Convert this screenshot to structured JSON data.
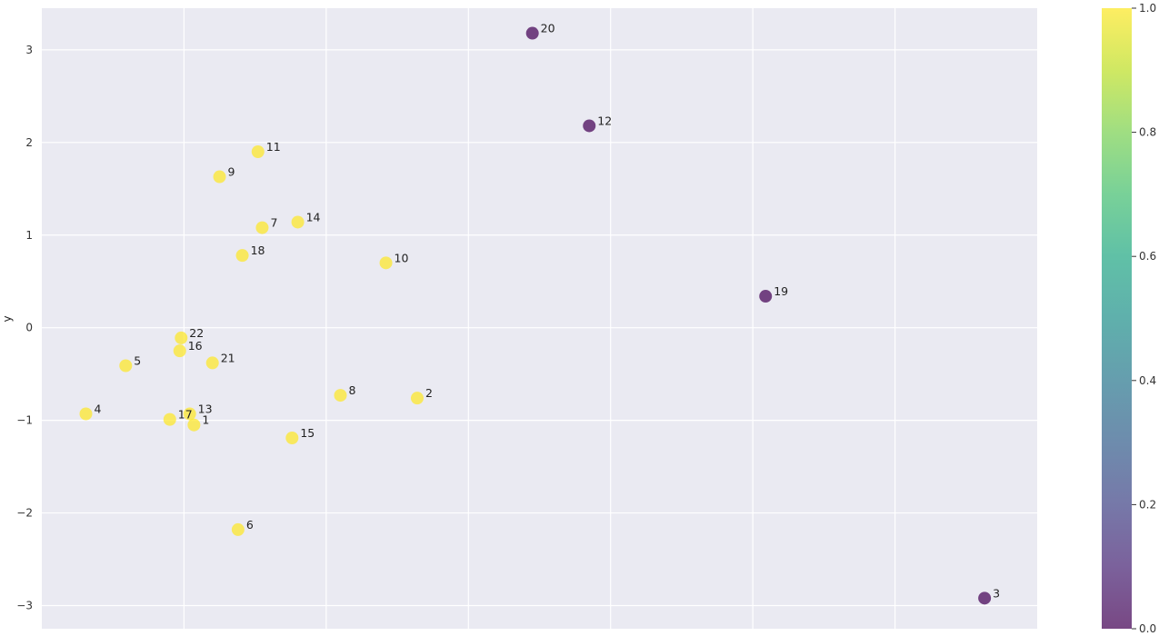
{
  "chart_data": {
    "type": "scatter",
    "ylabel": "y",
    "xlabel": "",
    "title": "",
    "ylim": [
      -3.25,
      3.45
    ],
    "yticks": [
      -3,
      -2,
      -1,
      0,
      1,
      2,
      3
    ],
    "xlim": [
      -1.0,
      6.0
    ],
    "xticks_unlabeled": [
      0,
      1,
      2,
      3,
      4,
      5
    ],
    "grid": true,
    "colormap": "viridis",
    "colorbar": {
      "range": [
        0.0,
        1.0
      ],
      "ticks": [
        "0.0",
        "0.2",
        "0.4",
        "0.6",
        "0.8",
        "1.0"
      ]
    },
    "points": [
      {
        "label": "1",
        "x": 0.07,
        "y": -1.05,
        "c": 1
      },
      {
        "label": "2",
        "x": 1.64,
        "y": -0.76,
        "c": 1
      },
      {
        "label": "3",
        "x": 5.63,
        "y": -2.92,
        "c": 0
      },
      {
        "label": "4",
        "x": -0.69,
        "y": -0.93,
        "c": 1
      },
      {
        "label": "5",
        "x": -0.41,
        "y": -0.41,
        "c": 1
      },
      {
        "label": "6",
        "x": 0.38,
        "y": -2.18,
        "c": 1
      },
      {
        "label": "7",
        "x": 0.55,
        "y": 1.08,
        "c": 1
      },
      {
        "label": "8",
        "x": 1.1,
        "y": -0.73,
        "c": 1
      },
      {
        "label": "9",
        "x": 0.25,
        "y": 1.63,
        "c": 1
      },
      {
        "label": "10",
        "x": 1.42,
        "y": 0.7,
        "c": 1
      },
      {
        "label": "11",
        "x": 0.52,
        "y": 1.9,
        "c": 1
      },
      {
        "label": "12",
        "x": 2.85,
        "y": 2.18,
        "c": 0
      },
      {
        "label": "13",
        "x": 0.04,
        "y": -0.93,
        "c": 1
      },
      {
        "label": "14",
        "x": 0.8,
        "y": 1.14,
        "c": 1
      },
      {
        "label": "15",
        "x": 0.76,
        "y": -1.19,
        "c": 1
      },
      {
        "label": "16",
        "x": -0.03,
        "y": -0.25,
        "c": 1
      },
      {
        "label": "17",
        "x": -0.1,
        "y": -0.99,
        "c": 1
      },
      {
        "label": "18",
        "x": 0.41,
        "y": 0.78,
        "c": 1
      },
      {
        "label": "19",
        "x": 4.09,
        "y": 0.34,
        "c": 0
      },
      {
        "label": "20",
        "x": 2.45,
        "y": 3.18,
        "c": 0
      },
      {
        "label": "21",
        "x": 0.2,
        "y": -0.38,
        "c": 1
      },
      {
        "label": "22",
        "x": -0.02,
        "y": -0.11,
        "c": 1
      }
    ],
    "colors": {
      "plot_background": "#eaeaf2",
      "grid": "#ffffff",
      "high": "#fde725",
      "low": "#440154"
    }
  }
}
